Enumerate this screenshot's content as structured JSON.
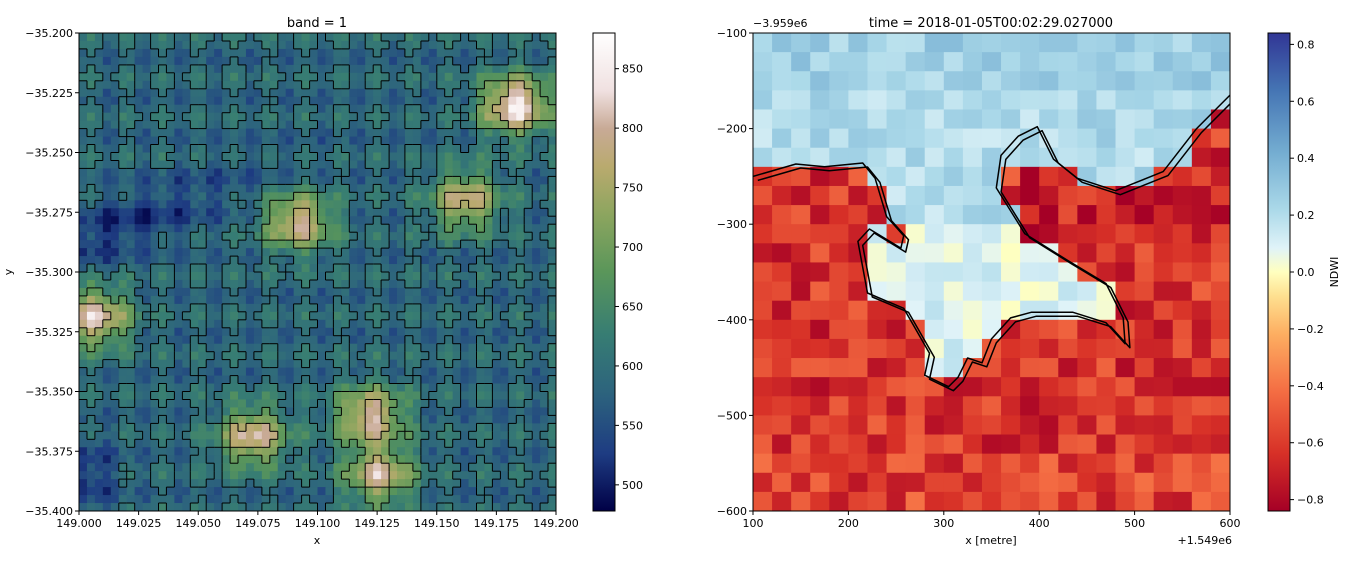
{
  "chart_data": [
    {
      "type": "heatmap",
      "title": "band = 1",
      "xlabel": "x",
      "ylabel": "y",
      "xlim": [
        149.0,
        149.2
      ],
      "ylim": [
        -35.4,
        -35.2
      ],
      "xticks": [
        "149.000",
        "149.025",
        "149.050",
        "149.075",
        "149.100",
        "149.125",
        "149.150",
        "149.175",
        "149.200"
      ],
      "yticks": [
        "-35.200",
        "-35.225",
        "-35.250",
        "-35.275",
        "-35.300",
        "-35.325",
        "-35.350",
        "-35.375",
        "-35.400"
      ],
      "colorbar": {
        "range": [
          478,
          880
        ],
        "ticks": [
          "500",
          "550",
          "600",
          "650",
          "700",
          "750",
          "800",
          "850"
        ],
        "colormap": "gist_earth",
        "label": ""
      },
      "contours": true,
      "peaks": [
        {
          "x": 149.183,
          "y": -35.23,
          "v": 860
        },
        {
          "x": 149.162,
          "y": -35.27,
          "v": 790
        },
        {
          "x": 149.092,
          "y": -35.279,
          "v": 805
        },
        {
          "x": 149.007,
          "y": -35.319,
          "v": 820
        },
        {
          "x": 149.122,
          "y": -35.36,
          "v": 815
        },
        {
          "x": 149.126,
          "y": -35.385,
          "v": 800
        },
        {
          "x": 149.073,
          "y": -35.369,
          "v": 810
        }
      ]
    },
    {
      "type": "heatmap",
      "title": "time = 2018-01-05T00:02:29.027000",
      "xlabel": "x [metre]",
      "ylabel": "",
      "x_offset_label": "+1.549e6",
      "y_offset_label": "−3.959e6",
      "xlim": [
        100,
        600
      ],
      "ylim": [
        -600,
        -100
      ],
      "xticks": [
        "100",
        "200",
        "300",
        "400",
        "500",
        "600"
      ],
      "yticks": [
        "−100",
        "−200",
        "−300",
        "−400",
        "−500",
        "−600"
      ],
      "colorbar": {
        "range": [
          -0.84,
          0.84
        ],
        "ticks": [
          "0.8",
          "0.6",
          "0.4",
          "0.2",
          "0.0",
          "−0.2",
          "−0.4",
          "−0.6",
          "−0.8"
        ],
        "colormap": "RdYlBu",
        "label": "NDWI"
      },
      "contours": true,
      "water_boundary": [
        [
          100,
          -250
        ],
        [
          145,
          -237
        ],
        [
          175,
          -240
        ],
        [
          215,
          -236
        ],
        [
          228,
          -252
        ],
        [
          240,
          -292
        ],
        [
          258,
          -312
        ],
        [
          255,
          -325
        ],
        [
          222,
          -305
        ],
        [
          210,
          -318
        ],
        [
          220,
          -372
        ],
        [
          258,
          -388
        ],
        [
          285,
          -435
        ],
        [
          280,
          -458
        ],
        [
          305,
          -470
        ],
        [
          315,
          -460
        ],
        [
          325,
          -440
        ],
        [
          340,
          -445
        ],
        [
          350,
          -420
        ],
        [
          370,
          -398
        ],
        [
          392,
          -392
        ],
        [
          435,
          -392
        ],
        [
          470,
          -403
        ],
        [
          490,
          -425
        ],
        [
          488,
          -398
        ],
        [
          470,
          -362
        ],
        [
          430,
          -338
        ],
        [
          385,
          -310
        ],
        [
          355,
          -262
        ],
        [
          360,
          -228
        ],
        [
          378,
          -208
        ],
        [
          398,
          -198
        ],
        [
          415,
          -232
        ],
        [
          440,
          -252
        ],
        [
          480,
          -265
        ],
        [
          530,
          -245
        ],
        [
          565,
          -200
        ],
        [
          600,
          -165
        ]
      ]
    }
  ]
}
